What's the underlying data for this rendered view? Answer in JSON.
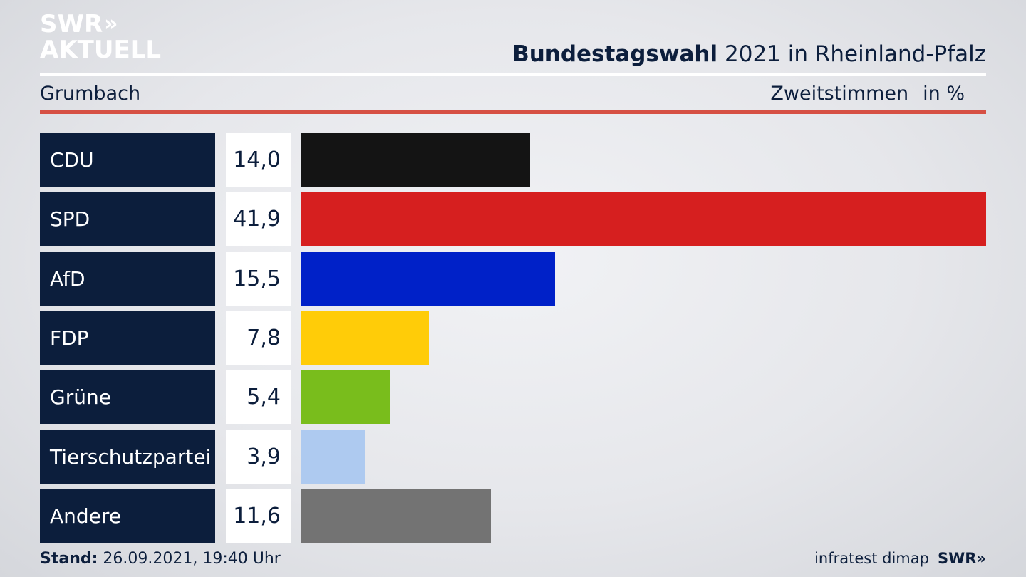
{
  "logo": {
    "line1": "SWR",
    "line1_mark": "»",
    "line2": "AKTUELL"
  },
  "header": {
    "title_bold": "Bundestagswahl",
    "title_rest": "2021 in Rheinland-Pfalz",
    "location": "Grumbach",
    "measure": "Zweitstimmen",
    "unit": "in %"
  },
  "chart_data": {
    "type": "bar",
    "orientation": "horizontal",
    "title": "Bundestagswahl 2021 in Rheinland-Pfalz",
    "subtitle": "Grumbach",
    "xlabel": "Zweitstimmen in %",
    "ylabel": "",
    "xlim": [
      0,
      41.9
    ],
    "categories": [
      "CDU",
      "SPD",
      "AfD",
      "FDP",
      "Grüne",
      "Tierschutzpartei",
      "Andere"
    ],
    "labels": [
      "14,0",
      "41,9",
      "15,5",
      "7,8",
      "5,4",
      "3,9",
      "11,6"
    ],
    "values": [
      14.0,
      41.9,
      15.5,
      7.8,
      5.4,
      3.9,
      11.6
    ],
    "colors": [
      "#141414",
      "#d61f1f",
      "#0021c8",
      "#ffcc08",
      "#79bd1c",
      "#aecaf0",
      "#737373"
    ]
  },
  "footer": {
    "stand_label": "Stand:",
    "stand_value": "26.09.2021, 19:40 Uhr",
    "source": "infratest dimap",
    "brand": "SWR",
    "brand_mark": "»"
  }
}
